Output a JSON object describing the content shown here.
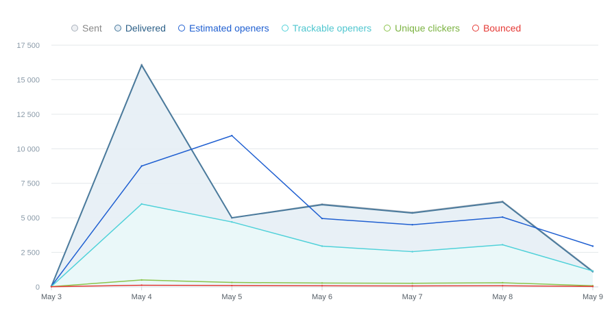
{
  "chart_data": {
    "type": "area",
    "categories": [
      "May 3",
      "May 4",
      "May 5",
      "May 6",
      "May 7",
      "May 8",
      "May 9"
    ],
    "ylim": [
      0,
      17500
    ],
    "y_ticks": [
      0,
      2500,
      5000,
      7500,
      10000,
      12500,
      15000,
      17500
    ],
    "y_tick_labels": [
      "0",
      "2 500",
      "5 000",
      "7 500",
      "10 000",
      "12 500",
      "15 000",
      "17 500"
    ],
    "grid": true,
    "legend_position": "top",
    "series": [
      {
        "name": "Sent",
        "color": "#aab2bd",
        "values": [
          50,
          16100,
          5000,
          6000,
          5400,
          6200,
          1150
        ]
      },
      {
        "name": "Delivered",
        "color": "#4a7a9c",
        "fill": "#e6eef5",
        "values": [
          50,
          16050,
          5000,
          5950,
          5350,
          6150,
          1100
        ]
      },
      {
        "name": "Estimated openers",
        "color": "#1f5fd1",
        "values": [
          50,
          8750,
          10950,
          4950,
          4500,
          5050,
          2950
        ]
      },
      {
        "name": "Trackable openers",
        "color": "#4fd1d9",
        "fill": "#eaf8fa",
        "values": [
          30,
          6000,
          4700,
          2950,
          2550,
          3050,
          1150
        ]
      },
      {
        "name": "Unique clickers",
        "color": "#8bc34a",
        "values": [
          20,
          500,
          320,
          280,
          260,
          300,
          80
        ]
      },
      {
        "name": "Bounced",
        "color": "#e53935",
        "values": [
          10,
          120,
          90,
          80,
          70,
          80,
          30
        ]
      }
    ]
  }
}
